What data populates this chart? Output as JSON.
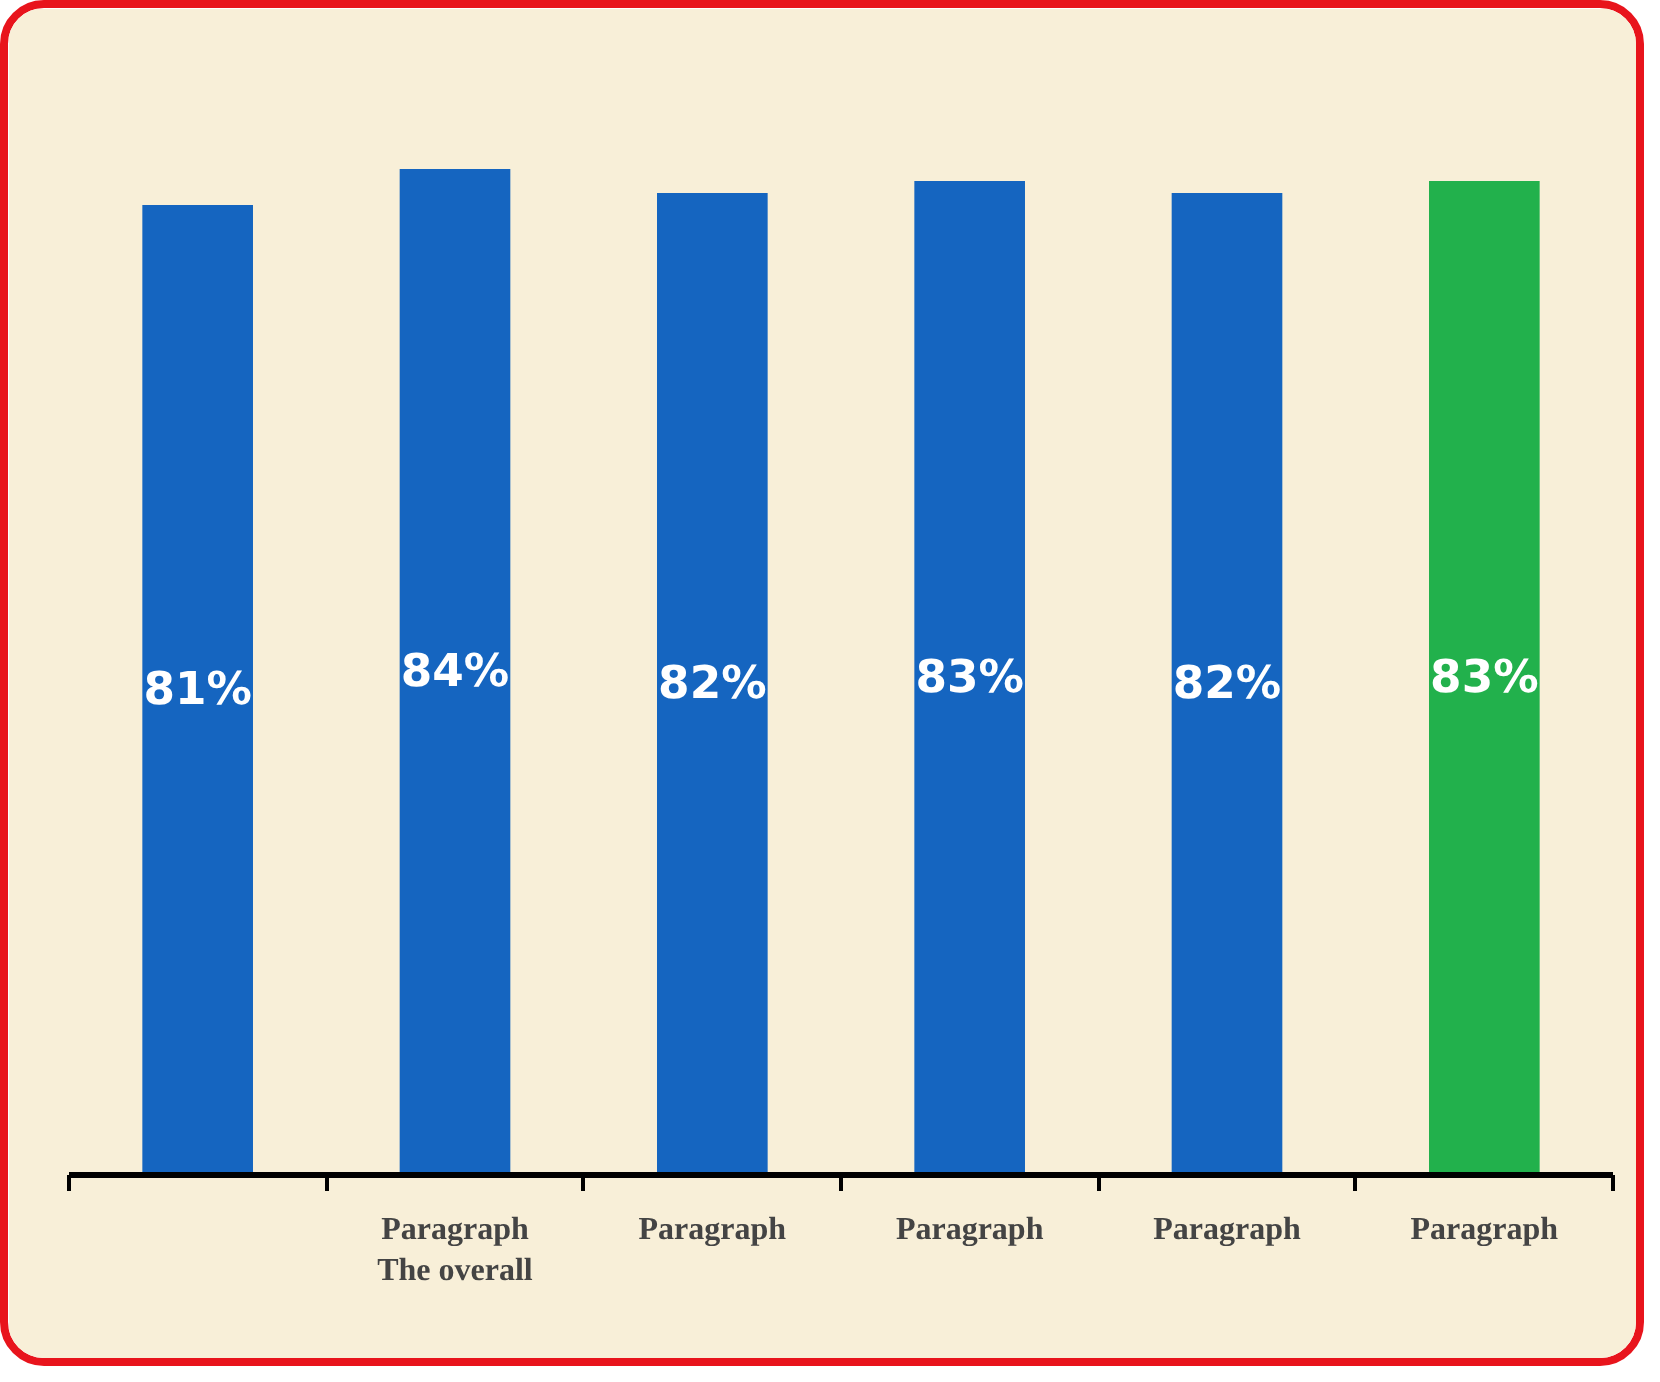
{
  "chart_data": {
    "type": "bar",
    "categories": [
      null,
      "Paragraph\nThe overall",
      "Paragraph",
      "Paragraph",
      "Paragraph",
      "Paragraph"
    ],
    "values": [
      81,
      84,
      82,
      83,
      82,
      83
    ],
    "value_labels": [
      "81%",
      "84%",
      "82%",
      "83%",
      "82%",
      "83%"
    ],
    "colors": [
      "#1565c0",
      "#1565c0",
      "#1565c0",
      "#1565c0",
      "#1565c0",
      "#22b14c"
    ],
    "grid": false
  }
}
